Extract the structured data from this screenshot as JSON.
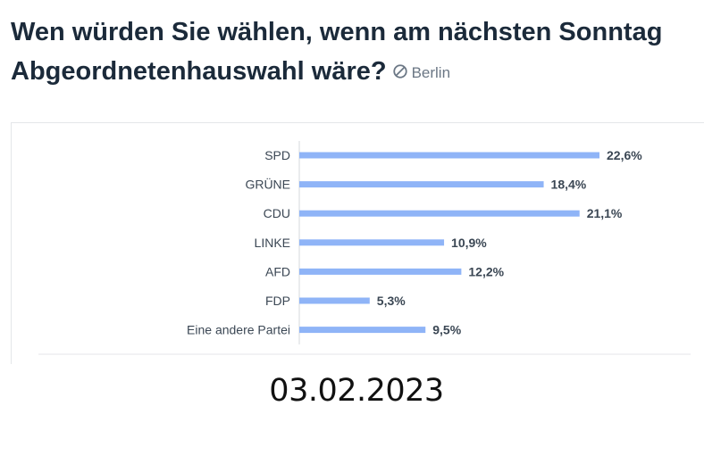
{
  "header": {
    "title": "Wen würden Sie wählen, wenn am nächsten Sonntag Abgeordnetenhauswahl wäre?",
    "region": "Berlin",
    "region_icon": "no-symbol-icon"
  },
  "chart_data": {
    "type": "bar",
    "orientation": "horizontal",
    "categories": [
      "SPD",
      "GRÜNE",
      "CDU",
      "LINKE",
      "AFD",
      "FDP",
      "Eine andere Partei"
    ],
    "values": [
      22.6,
      18.4,
      21.1,
      10.9,
      12.2,
      5.3,
      9.5
    ],
    "value_labels": [
      "22,6%",
      "18,4%",
      "21,1%",
      "10,9%",
      "12,2%",
      "5,3%",
      "9,5%"
    ],
    "unit": "%",
    "bar_color": "#8fb4f7",
    "grid": false,
    "legend": "none"
  },
  "footer": {
    "date": "03.02.2023"
  }
}
